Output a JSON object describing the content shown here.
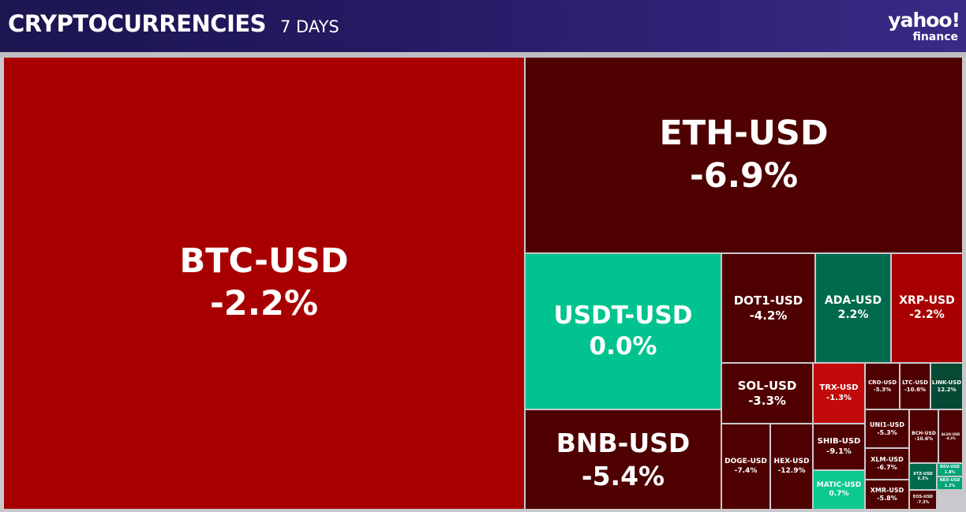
{
  "header": {
    "title": "CRYPTOCURRENCIES",
    "period": "7 DAYS",
    "logo_primary": "yahoo!",
    "logo_secondary": "finance"
  },
  "colors": {
    "header_bg": "#1d1749",
    "strong_red": "#a80000",
    "mid_red": "#b00404",
    "dark_red": "#4f0000",
    "strong_green": "#00c38f",
    "dark_green": "#006b4b",
    "border": "#c9c9cd"
  },
  "chart_data": {
    "type": "treemap",
    "title": "CRYPTOCURRENCIES",
    "period": "7 DAYS",
    "unit": "%",
    "items": [
      {
        "symbol": "BTC-USD",
        "change": -2.2,
        "label": "-2.2%",
        "color": "#a80000"
      },
      {
        "symbol": "ETH-USD",
        "change": -6.9,
        "label": "-6.9%",
        "color": "#4f0000"
      },
      {
        "symbol": "USDT-USD",
        "change": 0.0,
        "label": "0.0%",
        "color": "#00c38f"
      },
      {
        "symbol": "BNB-USD",
        "change": -5.4,
        "label": "-5.4%",
        "color": "#4f0000"
      },
      {
        "symbol": "DOT1-USD",
        "change": -4.2,
        "label": "-4.2%",
        "color": "#4f0000"
      },
      {
        "symbol": "ADA-USD",
        "change": 2.2,
        "label": "2.2%",
        "color": "#006b4b"
      },
      {
        "symbol": "XRP-USD",
        "change": -2.2,
        "label": "-2.2%",
        "color": "#a80000"
      },
      {
        "symbol": "SOL-USD",
        "change": -3.3,
        "label": "-3.3%",
        "color": "#4f0000"
      },
      {
        "symbol": "TRX-USD",
        "change": -1.3,
        "label": "-1.3%",
        "color": "#c20a0a"
      },
      {
        "symbol": "CRO-USD",
        "change": -5.3,
        "label": "-5.3%",
        "color": "#4f0000"
      },
      {
        "symbol": "LTC-USD",
        "change": -10.6,
        "label": "-10.6%",
        "color": "#4f0000"
      },
      {
        "symbol": "LINK-USD",
        "change": 12.2,
        "label": "12.2%",
        "color": "#064a33"
      },
      {
        "symbol": "DOGE-USD",
        "change": -7.4,
        "label": "-7.4%",
        "color": "#4f0000"
      },
      {
        "symbol": "HEX-USD",
        "change": -12.9,
        "label": "-12.9%",
        "color": "#4f0000"
      },
      {
        "symbol": "SHIB-USD",
        "change": -9.1,
        "label": "-9.1%",
        "color": "#4f0000"
      },
      {
        "symbol": "UNI1-USD",
        "change": -5.3,
        "label": "-5.3%",
        "color": "#4f0000"
      },
      {
        "symbol": "BCH-USD",
        "change": -10.6,
        "label": "-10.6%",
        "color": "#4f0000"
      },
      {
        "symbol": "ALGO-USD",
        "change": -4.3,
        "label": "-4.3%",
        "color": "#4f0000"
      },
      {
        "symbol": "XLM-USD",
        "change": -6.7,
        "label": "-6.7%",
        "color": "#4f0000"
      },
      {
        "symbol": "MATIC-USD",
        "change": 0.7,
        "label": "0.7%",
        "color": "#0ec98e"
      },
      {
        "symbol": "XMR-USD",
        "change": -5.8,
        "label": "-5.8%",
        "color": "#4f0000"
      },
      {
        "symbol": "XTZ-USD",
        "change": 6.3,
        "label": "6.3%",
        "color": "#006b4b"
      },
      {
        "symbol": "BSV-USD",
        "change": 1.8,
        "label": "1.8%",
        "color": "#00a377"
      },
      {
        "symbol": "NEO-USD",
        "change": 1.2,
        "label": "1.2%",
        "color": "#00a377"
      },
      {
        "symbol": "EOS-USD",
        "change": -7.3,
        "label": "-7.3%",
        "color": "#4f0000"
      }
    ]
  }
}
